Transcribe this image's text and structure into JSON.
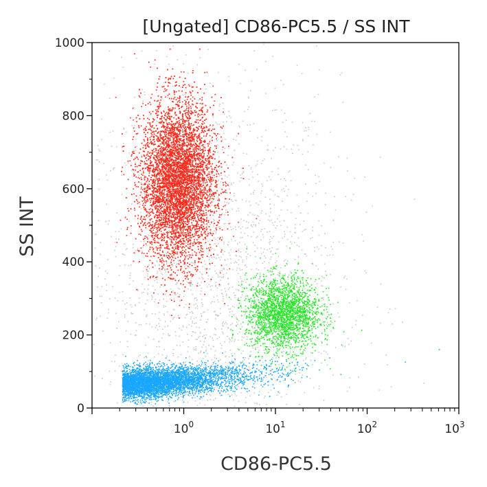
{
  "chart_data": {
    "type": "scatter",
    "title": "[Ungated] CD86-PC5.5 / SS INT",
    "xlabel": "CD86-PC5.5",
    "ylabel": "SS INT",
    "x_scale": "log",
    "x_range": [
      0.1,
      1000
    ],
    "y_range": [
      0,
      1000
    ],
    "x_ticks": [
      {
        "value": 1,
        "base": "10",
        "exp": "0"
      },
      {
        "value": 10,
        "base": "10",
        "exp": "1"
      },
      {
        "value": 100,
        "base": "10",
        "exp": "2"
      },
      {
        "value": 1000,
        "base": "10",
        "exp": "3"
      }
    ],
    "y_ticks": [
      {
        "value": 0,
        "label": "0"
      },
      {
        "value": 200,
        "label": "200"
      },
      {
        "value": 400,
        "label": "400"
      },
      {
        "value": 600,
        "label": "600"
      },
      {
        "value": 800,
        "label": "800"
      },
      {
        "value": 1000,
        "label": "1000"
      }
    ],
    "grid": false,
    "populations": [
      {
        "color": "#ff2a1a",
        "x_center": 0.85,
        "y_center": 620,
        "x_spread_log": 0.2,
        "y_spread": 110,
        "events": 9000
      },
      {
        "color": "#1aa7ff",
        "x_center": 0.3,
        "y_center": 70,
        "x_spread_log": 0.45,
        "y_spread": 20,
        "events": 5000
      },
      {
        "color": "#1ee81e",
        "x_center": 12,
        "y_center": 260,
        "x_spread_log": 0.2,
        "y_spread": 50,
        "events": 2200
      },
      {
        "color": "#c8c8c8",
        "x_center": 2,
        "y_center": 350,
        "x_spread_log": 0.7,
        "y_spread": 280,
        "events": 2500
      }
    ]
  }
}
